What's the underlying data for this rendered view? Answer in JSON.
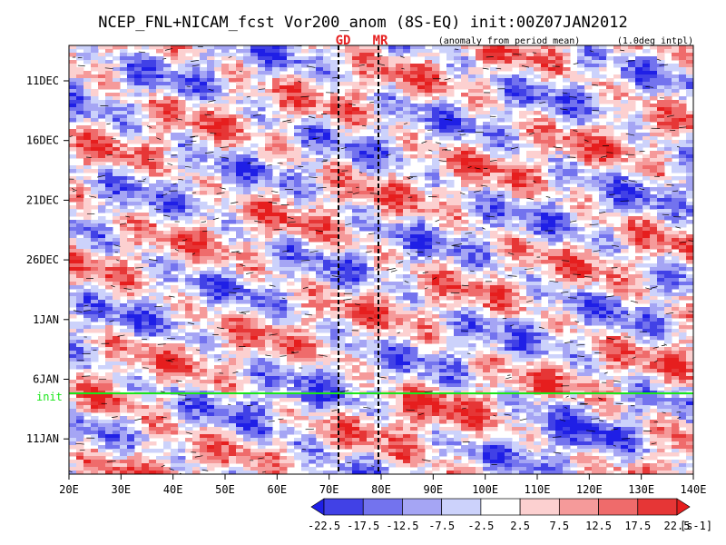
{
  "chart_data": {
    "type": "heatmap",
    "title": "NCEP_FNL+NICAM_fcst Vor200_anom (8S-EQ) init:00Z07JAN2012",
    "subtitle": "(anomaly from period mean)",
    "interp_note": "(1.0deg intpl)",
    "xlabel": "",
    "ylabel": "",
    "x_range": [
      "20E",
      "140E"
    ],
    "x_ticks": [
      "20E",
      "30E",
      "40E",
      "50E",
      "60E",
      "70E",
      "80E",
      "90E",
      "100E",
      "110E",
      "120E",
      "130E",
      "140E"
    ],
    "y_ticks": [
      "11DEC",
      "16DEC",
      "21DEC",
      "26DEC",
      "1JAN",
      "6JAN",
      "11JAN"
    ],
    "init_label": "init",
    "init_time": "00Z07JAN2012",
    "markers": [
      {
        "label": "GD",
        "lon": 73
      },
      {
        "label": "MR",
        "lon": 79
      }
    ],
    "colorbar": {
      "levels": [
        "-22.5",
        "-17.5",
        "-12.5",
        "-7.5",
        "-2.5",
        "2.5",
        "7.5",
        "12.5",
        "17.5",
        "22.5"
      ],
      "unit": "[s-1]",
      "colors": [
        "#1f1fe6",
        "#4141e6",
        "#7373ee",
        "#a5a5f4",
        "#ccd2fb",
        "#ffffff",
        "#fcd0d0",
        "#f59a9a",
        "#ef6b6b",
        "#e63636",
        "#e61e1e"
      ]
    },
    "grid": false
  }
}
